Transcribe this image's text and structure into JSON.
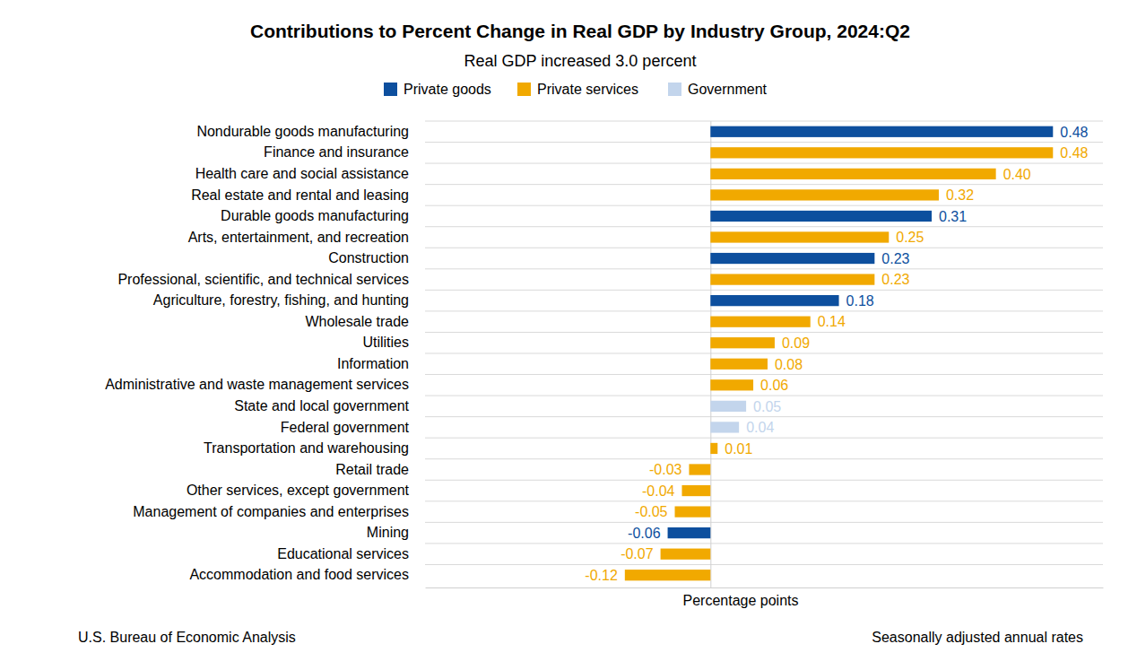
{
  "chart_data": {
    "type": "bar",
    "orientation": "horizontal",
    "title": "Contributions to Percent Change in Real GDP by Industry Group, 2024:Q2",
    "subtitle": "Real GDP increased 3.0 percent",
    "x_label": "Percentage points",
    "source": "U.S. Bureau of Economic Analysis",
    "note": "Seasonally adjusted annual rates",
    "categories": [
      "Nondurable goods manufacturing",
      "Finance and insurance",
      "Health care and social assistance",
      "Real estate and rental and leasing",
      "Durable goods manufacturing",
      "Arts, entertainment, and recreation",
      "Construction",
      "Professional, scientific, and technical services",
      "Agriculture, forestry, fishing, and hunting",
      "Wholesale trade",
      "Utilities",
      "Information",
      "Administrative and waste management services",
      "State and local government",
      "Federal government",
      "Transportation and warehousing",
      "Retail trade",
      "Other services, except government",
      "Management of companies and enterprises",
      "Mining",
      "Educational services",
      "Accommodation and food services"
    ],
    "series": [
      {
        "name": "Private goods",
        "color": "#0d4f9e",
        "values": [
          0.48,
          null,
          null,
          null,
          0.31,
          null,
          0.23,
          null,
          0.18,
          null,
          null,
          null,
          null,
          null,
          null,
          null,
          null,
          null,
          null,
          -0.06,
          null,
          null
        ],
        "value_labels": [
          "0.48",
          null,
          null,
          null,
          "0.31",
          null,
          "0.23",
          null,
          "0.18",
          null,
          null,
          null,
          null,
          null,
          null,
          null,
          null,
          null,
          null,
          "-0.06",
          null,
          null
        ]
      },
      {
        "name": "Private services",
        "color": "#f1a900",
        "values": [
          null,
          0.48,
          0.4,
          0.32,
          null,
          0.25,
          null,
          0.23,
          null,
          0.14,
          0.09,
          0.08,
          0.06,
          null,
          null,
          0.01,
          -0.03,
          -0.04,
          -0.05,
          null,
          -0.07,
          -0.12
        ],
        "value_labels": [
          null,
          "0.48",
          "0.40",
          "0.32",
          null,
          "0.25",
          null,
          "0.23",
          null,
          "0.14",
          "0.09",
          "0.08",
          "0.06",
          null,
          null,
          "0.01",
          "-0.03",
          "-0.04",
          "-0.05",
          null,
          "-0.07",
          "-0.12"
        ]
      },
      {
        "name": "Government",
        "color": "#c3d5ec",
        "values": [
          null,
          null,
          null,
          null,
          null,
          null,
          null,
          null,
          null,
          null,
          null,
          null,
          null,
          0.05,
          0.04,
          null,
          null,
          null,
          null,
          null,
          null,
          null
        ],
        "value_labels": [
          null,
          null,
          null,
          null,
          null,
          null,
          null,
          null,
          null,
          null,
          null,
          null,
          null,
          "0.05",
          "0.04",
          null,
          null,
          null,
          null,
          null,
          null,
          null
        ]
      }
    ],
    "xlim": [
      -0.4,
      0.55
    ],
    "xticks": [
      0
    ],
    "tick_labels": "y",
    "grid": true,
    "data_labels": true,
    "legend": "top"
  }
}
